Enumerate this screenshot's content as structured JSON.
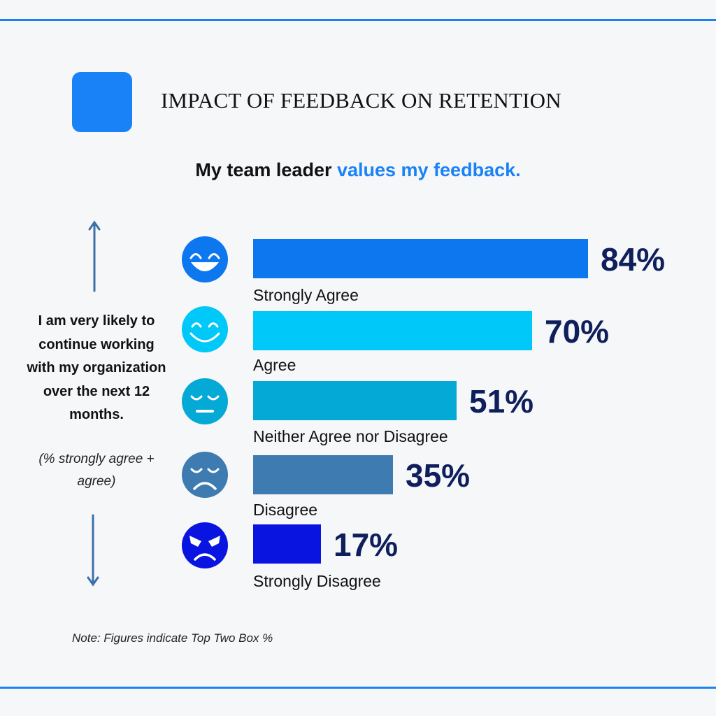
{
  "header": {
    "title": "IMPACT OF FEEDBACK ON RETENTION",
    "subtitle_prefix": "My team leader ",
    "subtitle_highlight": "values my feedback."
  },
  "side": {
    "text": "I am very likely to continue working with my organization over the next 12 months.",
    "note": "(% strongly agree + agree)"
  },
  "footnote": "Note: Figures indicate Top Two Box %",
  "colors": {
    "accent": "#1a82f7",
    "value_text": "#0f1f5c",
    "arrow": "#3d6fa8"
  },
  "chart_data": {
    "type": "bar",
    "orientation": "horizontal",
    "categories": [
      "Strongly Agree",
      "Agree",
      "Neither Agree nor Disagree",
      "Disagree",
      "Strongly Disagree"
    ],
    "values": [
      84,
      70,
      51,
      35,
      17
    ],
    "value_labels": [
      "84%",
      "70%",
      "51%",
      "35%",
      "17%"
    ],
    "unit": "%",
    "xlim": [
      0,
      100
    ],
    "bar_colors": [
      "#0d77f0",
      "#00c8f8",
      "#05a9d5",
      "#3e7bb0",
      "#0a14e0"
    ],
    "icons": [
      "laughing-face-icon",
      "smiling-face-icon",
      "neutral-face-icon",
      "frowning-face-icon",
      "angry-face-icon"
    ],
    "title": "My team leader values my feedback.",
    "ylabel": "I am very likely to continue working with my organization over the next 12 months.",
    "grid": false,
    "legend": "none"
  }
}
